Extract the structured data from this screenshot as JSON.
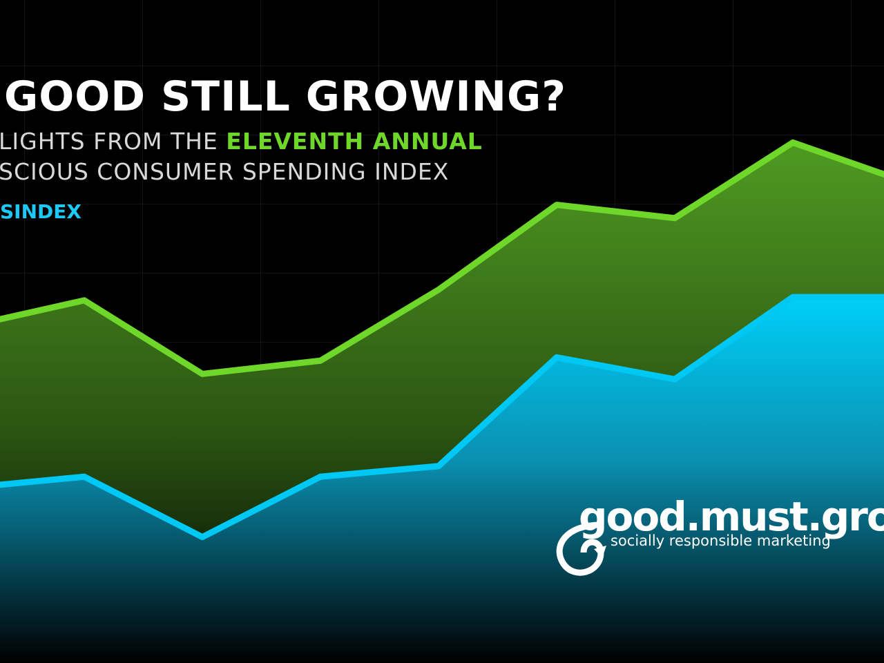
{
  "chart_data": {
    "type": "area",
    "title": "GOOD STILL GROWING?",
    "subtitle_lines": [
      "LIGHTS FROM THE",
      "ELEVENTH ANNUAL",
      "SCIOUS CONSUMER SPENDING INDEX"
    ],
    "tag": "SINDEX",
    "logo": {
      "name": "good.must.grow",
      "tagline": "socially responsible marketing"
    },
    "categories": [
      null,
      null,
      null,
      null,
      null,
      null,
      null,
      null,
      null
    ],
    "ylim": [
      0,
      100
    ],
    "series": [
      {
        "color": "#6ed72a",
        "fill": "#3f7f1a",
        "values": [
          50.7,
          54.7,
          43.6,
          45.6,
          56.3,
          69.1,
          67.1,
          78.5,
          72.3
        ]
      },
      {
        "color": "#00c8f5",
        "fill": "#00b8e0",
        "values": [
          26.4,
          28.1,
          19,
          28.1,
          29.7,
          46.1,
          42.8,
          55.2,
          55.2
        ]
      }
    ]
  }
}
